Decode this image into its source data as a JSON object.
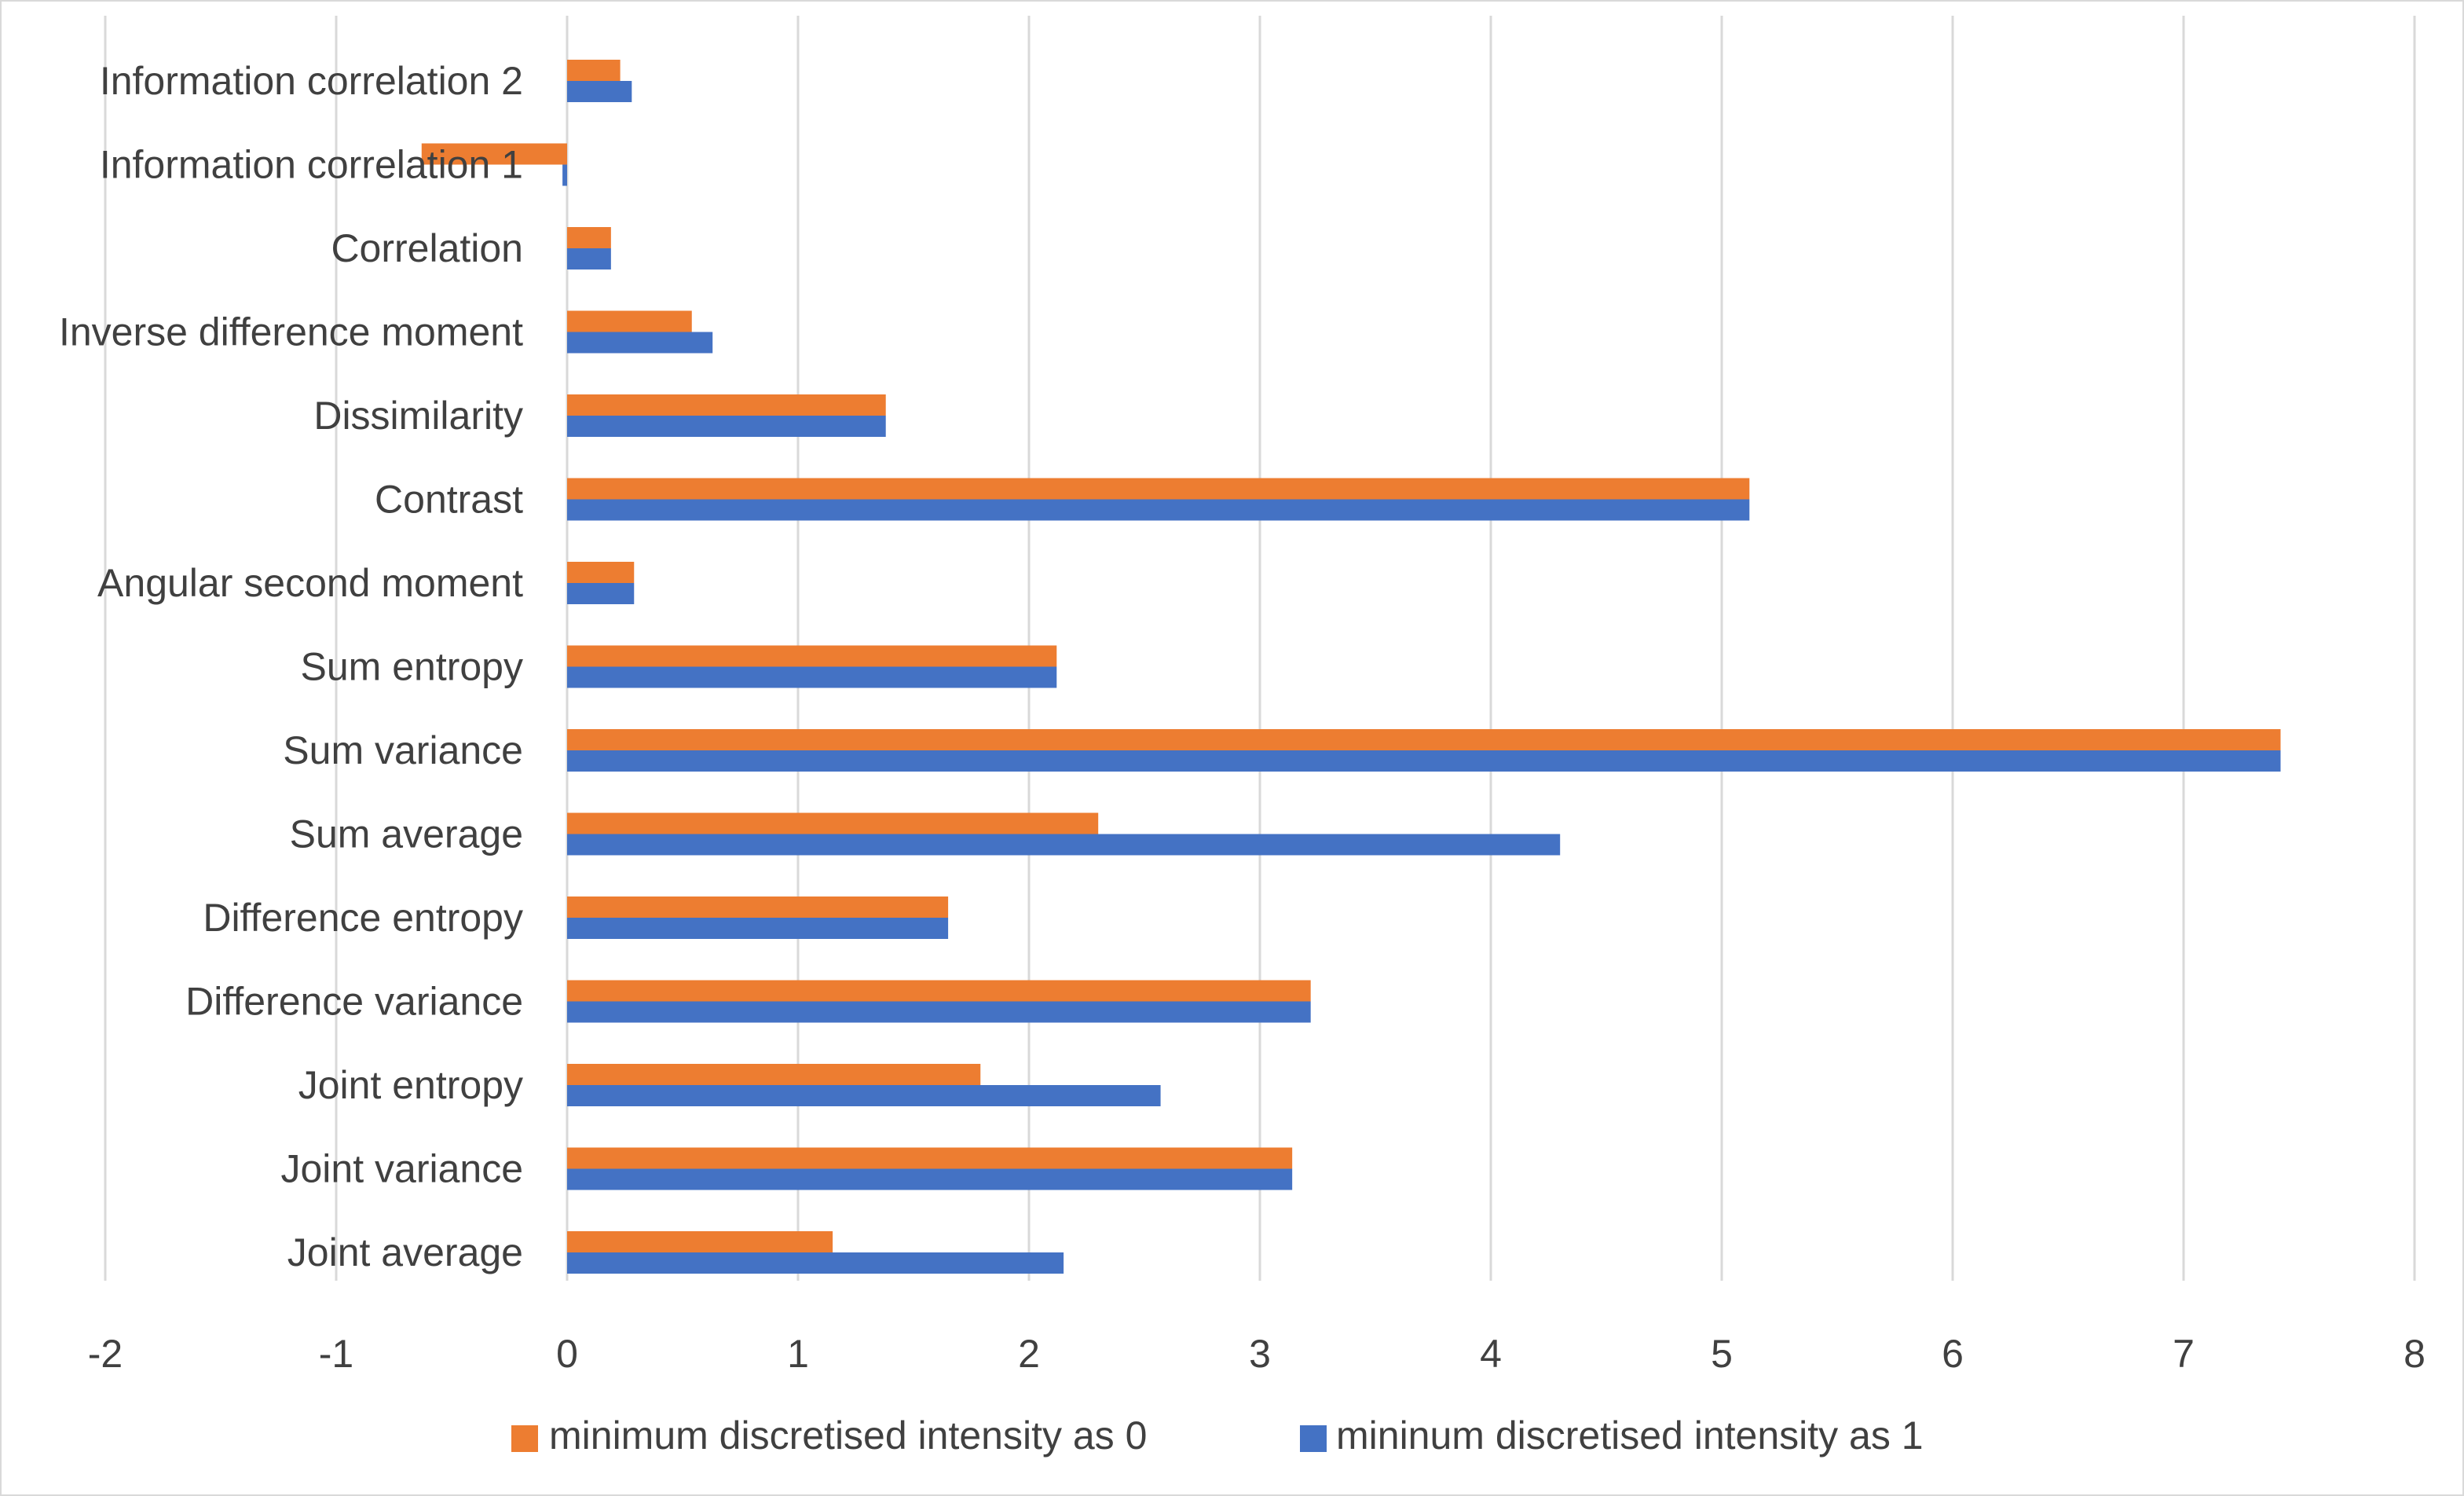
{
  "chart_data": {
    "type": "bar",
    "orientation": "horizontal",
    "title": "",
    "xlabel": "",
    "ylabel": "",
    "xlim": [
      -2,
      8
    ],
    "x_ticks": [
      "-2",
      "-1",
      "0",
      "1",
      "2",
      "3",
      "4",
      "5",
      "6",
      "7",
      "8"
    ],
    "grid": true,
    "legend_position": "bottom",
    "categories": [
      "Joint average",
      "Joint variance",
      "Joint entropy",
      "Difference variance",
      "Difference entropy",
      "Sum average",
      "Sum variance",
      "Sum entropy",
      "Angular second moment",
      "Contrast",
      "Dissimilarity",
      "Inverse difference moment",
      "Correlation",
      "Information correlation 1",
      "Information correlation 2"
    ],
    "series": [
      {
        "name": "minimum discretised intensity as 0",
        "color": "#ED7D31",
        "values": [
          1.15,
          3.14,
          1.79,
          3.22,
          1.65,
          2.3,
          7.42,
          2.12,
          0.29,
          5.12,
          1.38,
          0.54,
          0.19,
          -0.63,
          0.23
        ]
      },
      {
        "name": "mininum discretised intensity as 1",
        "color": "#4472C4",
        "values": [
          2.15,
          3.14,
          2.57,
          3.22,
          1.65,
          4.3,
          7.42,
          2.12,
          0.29,
          5.12,
          1.38,
          0.63,
          0.19,
          -0.02,
          0.28
        ]
      }
    ]
  }
}
